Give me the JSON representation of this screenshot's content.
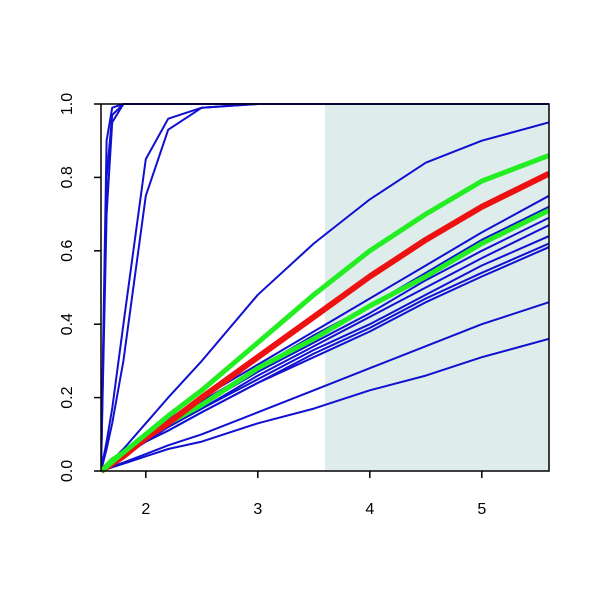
{
  "chart_data": {
    "type": "line",
    "x": [
      1.6,
      1.65,
      1.7,
      1.8,
      2.0,
      2.2,
      2.5,
      3.0,
      3.5,
      4.0,
      4.5,
      5.0,
      5.6
    ],
    "xlim": [
      1.6,
      5.6
    ],
    "xticks": [
      2,
      3,
      4,
      5
    ],
    "ylim": [
      0,
      1
    ],
    "yticks": [
      {
        "value": 0,
        "label": "0.0"
      },
      0.2,
      0.4,
      0.6,
      0.8,
      {
        "value": 1,
        "label": "1.0"
      }
    ],
    "shade": {
      "xlim": [
        3.6,
        5.6
      ],
      "color": "#dfecec"
    },
    "series": [
      {
        "color": "#1010d0",
        "width": 2,
        "values": [
          0,
          0.9,
          0.99,
          1,
          1,
          1,
          1,
          1,
          1,
          1,
          1,
          1,
          1
        ]
      },
      {
        "color": "#1010d0",
        "width": 2,
        "values": [
          0,
          0.8,
          0.97,
          1,
          1,
          1,
          1,
          1,
          1,
          1,
          1,
          1,
          1
        ]
      },
      {
        "color": "#1010d0",
        "width": 2,
        "values": [
          0,
          0.7,
          0.95,
          1,
          1,
          1,
          1,
          1,
          1,
          1,
          1,
          1,
          1
        ]
      },
      {
        "color": "#1010d0",
        "width": 2,
        "values": [
          0,
          0.08,
          0.17,
          0.4,
          0.85,
          0.96,
          0.99,
          1,
          1,
          1,
          1,
          1,
          1
        ]
      },
      {
        "color": "#1010d0",
        "width": 2,
        "values": [
          0,
          0.06,
          0.13,
          0.3,
          0.75,
          0.93,
          0.99,
          1,
          1,
          1,
          1,
          1,
          1
        ]
      },
      {
        "color": "#1010d0",
        "width": 2,
        "values": [
          0,
          0.02,
          0.03,
          0.06,
          0.13,
          0.2,
          0.3,
          0.48,
          0.62,
          0.74,
          0.84,
          0.9,
          0.95
        ]
      },
      {
        "color": "#1010d0",
        "width": 2,
        "values": [
          0,
          0.015,
          0.03,
          0.05,
          0.1,
          0.14,
          0.2,
          0.29,
          0.38,
          0.47,
          0.56,
          0.65,
          0.75
        ]
      },
      {
        "color": "#1010d0",
        "width": 2,
        "values": [
          0,
          0.014,
          0.03,
          0.05,
          0.09,
          0.13,
          0.19,
          0.28,
          0.37,
          0.45,
          0.54,
          0.63,
          0.72
        ]
      },
      {
        "color": "#1010d0",
        "width": 2,
        "values": [
          0,
          0.014,
          0.03,
          0.05,
          0.09,
          0.12,
          0.18,
          0.27,
          0.35,
          0.43,
          0.52,
          0.6,
          0.69
        ]
      },
      {
        "color": "#1010d0",
        "width": 2,
        "values": [
          0,
          0.013,
          0.03,
          0.05,
          0.09,
          0.12,
          0.17,
          0.26,
          0.34,
          0.42,
          0.5,
          0.58,
          0.67
        ]
      },
      {
        "color": "#1010d0",
        "width": 2,
        "values": [
          0,
          0.013,
          0.03,
          0.04,
          0.08,
          0.12,
          0.17,
          0.25,
          0.33,
          0.4,
          0.48,
          0.56,
          0.64
        ]
      },
      {
        "color": "#1010d0",
        "width": 2,
        "values": [
          0,
          0.012,
          0.02,
          0.04,
          0.08,
          0.11,
          0.16,
          0.24,
          0.32,
          0.39,
          0.47,
          0.54,
          0.62
        ]
      },
      {
        "color": "#1010d0",
        "width": 2,
        "values": [
          0,
          0.012,
          0.02,
          0.04,
          0.08,
          0.11,
          0.16,
          0.24,
          0.31,
          0.38,
          0.46,
          0.53,
          0.61
        ]
      },
      {
        "color": "#1010d0",
        "width": 2,
        "values": [
          0,
          0.006,
          0.012,
          0.023,
          0.046,
          0.07,
          0.1,
          0.16,
          0.22,
          0.28,
          0.34,
          0.4,
          0.46
        ]
      },
      {
        "color": "#1010d0",
        "width": 2,
        "values": [
          0,
          0.005,
          0.01,
          0.02,
          0.04,
          0.06,
          0.08,
          0.13,
          0.17,
          0.22,
          0.26,
          0.31,
          0.36
        ]
      },
      {
        "color": "#22ee22",
        "width": 5,
        "values": [
          0,
          0.014,
          0.03,
          0.05,
          0.09,
          0.13,
          0.18,
          0.28,
          0.36,
          0.45,
          0.53,
          0.62,
          0.71
        ]
      },
      {
        "color": "#ee1111",
        "width": 6,
        "values": [
          0,
          0.01,
          0.02,
          0.04,
          0.09,
          0.13,
          0.2,
          0.31,
          0.42,
          0.53,
          0.63,
          0.72,
          0.81
        ]
      },
      {
        "color": "#22ee22",
        "width": 5,
        "values": [
          0,
          0.012,
          0.025,
          0.05,
          0.1,
          0.15,
          0.22,
          0.35,
          0.48,
          0.6,
          0.7,
          0.79,
          0.86
        ]
      }
    ]
  }
}
